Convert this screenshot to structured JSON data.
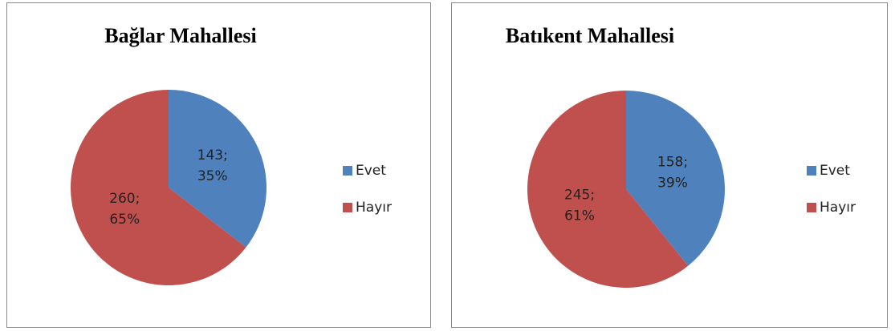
{
  "chart_data": [
    {
      "type": "pie",
      "title": "Bağlar Mahallesi",
      "categories": [
        "Evet",
        "Hayır"
      ],
      "values": [
        143,
        260
      ],
      "value_labels": [
        [
          "143;",
          "35%"
        ],
        [
          "260;",
          "65%"
        ]
      ],
      "colors": [
        "#4f81bd",
        "#c0504d"
      ],
      "legend": "right"
    },
    {
      "type": "pie",
      "title": "Batıkent Mahallesi",
      "categories": [
        "Evet",
        "Hayır"
      ],
      "values": [
        158,
        245
      ],
      "value_labels": [
        [
          "158;",
          "39%"
        ],
        [
          "245;",
          "61%"
        ]
      ],
      "colors": [
        "#4f81bd",
        "#c0504d"
      ],
      "legend": "right"
    }
  ]
}
